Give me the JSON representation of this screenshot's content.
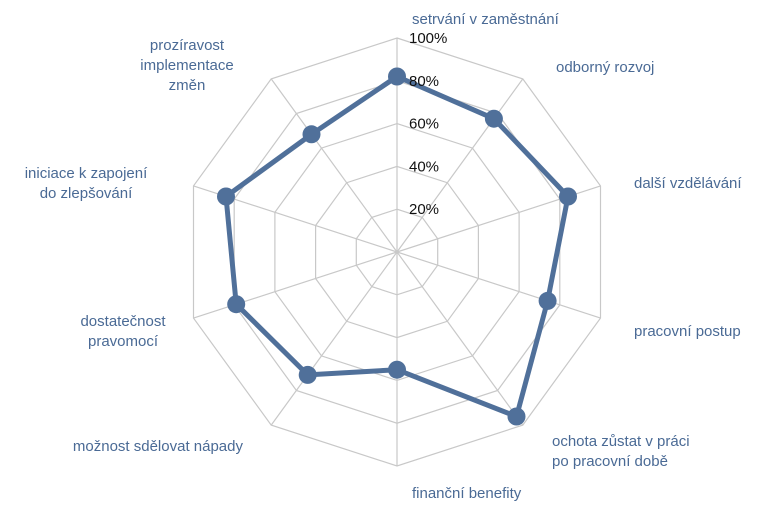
{
  "chart_data": {
    "type": "radar",
    "title": "",
    "categories": [
      "setrvání v zaměstnání",
      "odborný rozvoj",
      "další vzdělávání",
      "pracovní postup",
      "ochota zůstat v práci po pracovní době",
      "finanční benefity",
      "možnost sdělovat nápady",
      "dostatečnost pravomocí",
      "iniciace k zapojení do zlepšování",
      "prozíravost implementace změn"
    ],
    "category_lines": [
      [
        "setrvání v zaměstnání"
      ],
      [
        "odborný rozvoj"
      ],
      [
        "další vzdělávání"
      ],
      [
        "pracovní postup"
      ],
      [
        "ochota zůstat v práci",
        "po pracovní době"
      ],
      [
        "finanční benefity"
      ],
      [
        "možnost sdělovat nápady"
      ],
      [
        "dostatečnost",
        "pravomocí"
      ],
      [
        "iniciace k zapojení",
        "do zlepšování"
      ],
      [
        "prozíravost",
        "implementace",
        "změn"
      ]
    ],
    "series": [
      {
        "name": "hodnocení",
        "values": [
          82,
          77,
          84,
          74,
          95,
          55,
          71,
          79,
          84,
          68
        ]
      }
    ],
    "range": [
      0,
      100
    ],
    "ticks": [
      20,
      40,
      60,
      80,
      100
    ],
    "tick_labels": [
      "20%",
      "40%",
      "60%",
      "80%",
      "100%"
    ],
    "colors": {
      "series": "#50709a",
      "grid": "#c8c8c8",
      "label": "#4a6a95",
      "tick": "#111111"
    }
  }
}
